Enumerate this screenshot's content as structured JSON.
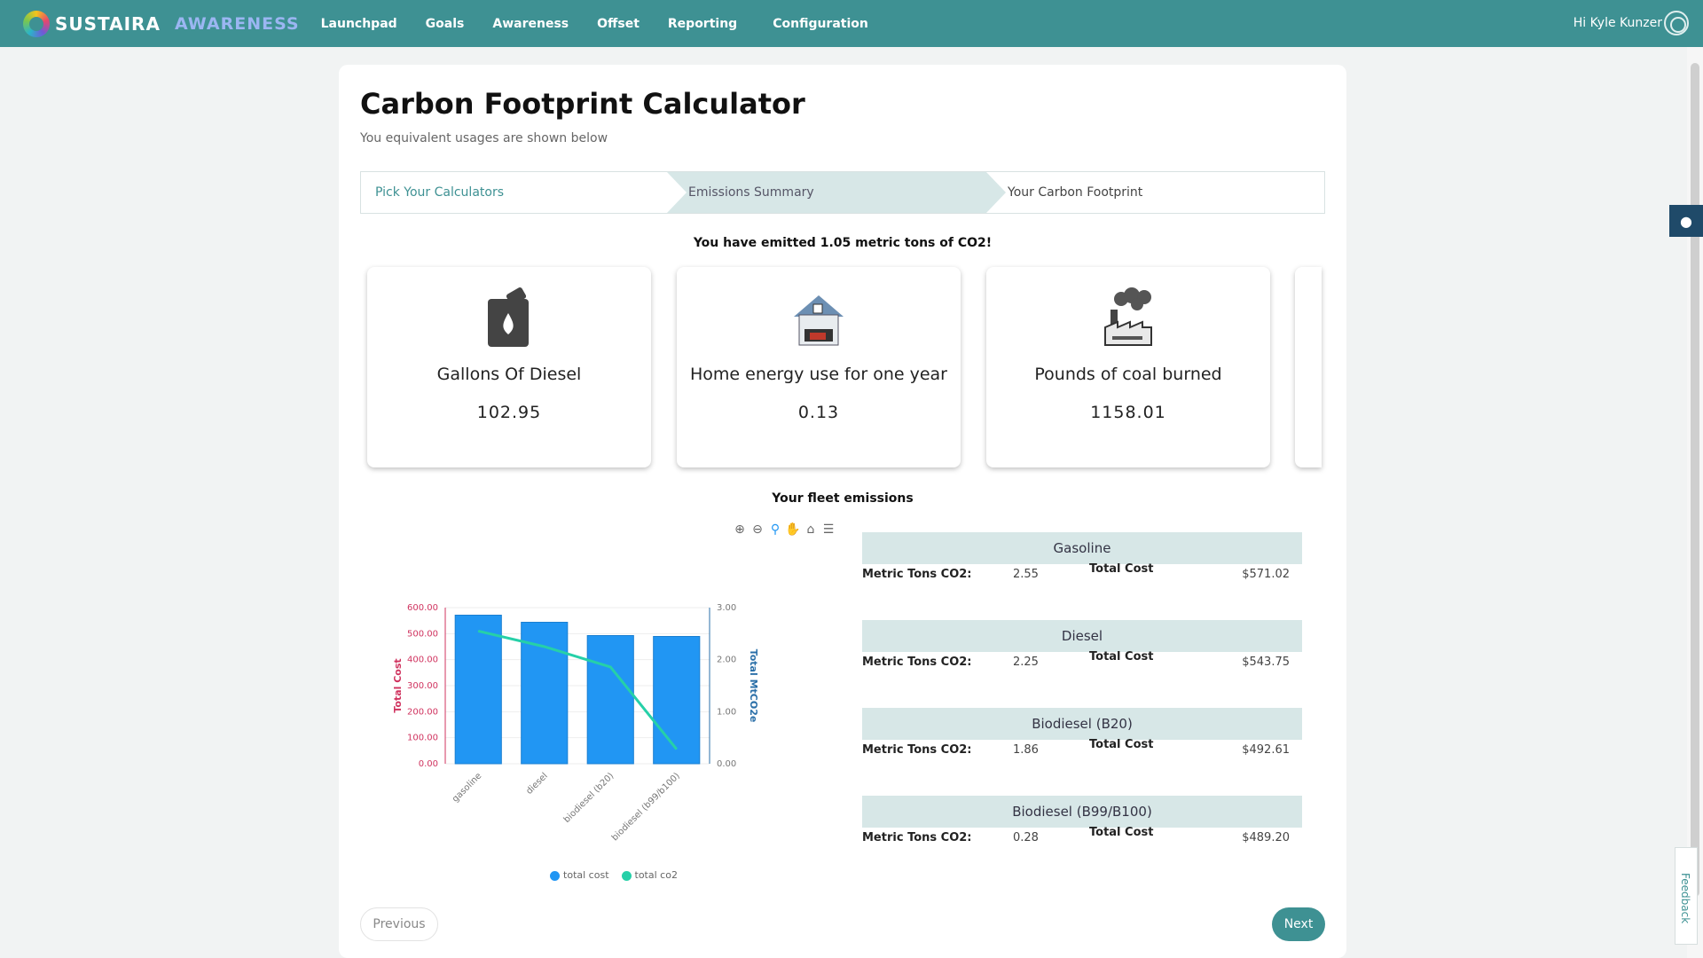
{
  "nav": {
    "brand": "SUSTAIRA",
    "brand_sub": "AWARENESS",
    "items": [
      "Launchpad",
      "Goals",
      "Awareness",
      "Offset",
      "Reporting",
      "Configuration"
    ],
    "user": "Hi Kyle Kunzer"
  },
  "page": {
    "title": "Carbon Footprint Calculator",
    "subtitle": "You equivalent usages are shown below"
  },
  "steps": [
    "Pick Your Calculators",
    "Emissions Summary",
    "Your Carbon Footprint"
  ],
  "emitted_text": "You have emitted 1.05 metric tons of CO2!",
  "equivalents": [
    {
      "label": "Gallons Of Diesel",
      "value": "102.95",
      "icon": "fuel-can-icon"
    },
    {
      "label": "Home energy use for one year",
      "value": "0.13",
      "icon": "house-icon"
    },
    {
      "label": "Pounds of coal burned",
      "value": "1158.01",
      "icon": "factory-smoke-icon"
    }
  ],
  "fleet_title": "Your fleet emissions",
  "fuels": [
    {
      "name": "Gasoline",
      "co2_label": "Metric Tons CO2:",
      "co2": "2.55",
      "cost_label": "Total Cost",
      "cost": "$571.02"
    },
    {
      "name": "Diesel",
      "co2_label": "Metric Tons CO2:",
      "co2": "2.25",
      "cost_label": "Total Cost",
      "cost": "$543.75"
    },
    {
      "name": "Biodiesel (B20)",
      "co2_label": "Metric Tons CO2:",
      "co2": "1.86",
      "cost_label": "Total Cost",
      "cost": "$492.61"
    },
    {
      "name": "Biodiesel (B99/B100)",
      "co2_label": "Metric Tons CO2:",
      "co2": "0.28",
      "cost_label": "Total Cost",
      "cost": "$489.20"
    }
  ],
  "buttons": {
    "previous": "Previous",
    "next": "Next",
    "feedback": "Feedback"
  },
  "colors": {
    "nav": "#3e9193",
    "bar": "#2196f3",
    "line": "#26d0a8",
    "left_axis": "#d0335f",
    "right_axis": "#2a6fa8"
  },
  "chart_data": {
    "type": "bar",
    "categories": [
      "gasoline",
      "diesel",
      "biodiesel (b20)",
      "biodiesel (b99/b100)"
    ],
    "series": [
      {
        "name": "total cost",
        "type": "bar",
        "axis": "left",
        "values": [
          571.02,
          543.75,
          492.61,
          489.2
        ]
      },
      {
        "name": "total co2",
        "type": "line",
        "axis": "right",
        "values": [
          2.55,
          2.25,
          1.86,
          0.28
        ]
      }
    ],
    "ylabel": "Total Cost",
    "y2label": "Total MtCO2e",
    "ylim": [
      0,
      600
    ],
    "y2lim": [
      0,
      3
    ],
    "yticks": [
      "0.00",
      "100.00",
      "200.00",
      "300.00",
      "400.00",
      "500.00",
      "600.00"
    ],
    "y2ticks": [
      "0.00",
      "1.00",
      "2.00",
      "3.00"
    ],
    "legend": "bottom"
  }
}
